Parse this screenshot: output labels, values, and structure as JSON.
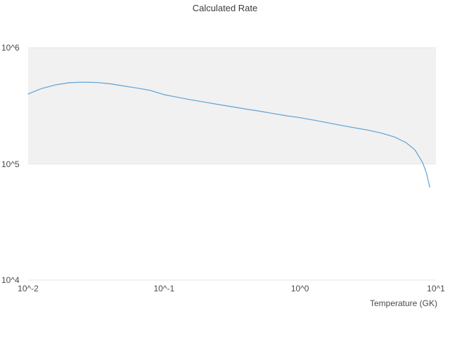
{
  "chart": {
    "title": "Calculated Rate",
    "x_axis_label": "Temperature (GK)",
    "line_color": "#6aa9d8",
    "band_color": "#f1f1f1",
    "gridline_color": "#e6e6e6"
  },
  "chart_data": {
    "type": "line",
    "title": "Calculated Rate",
    "xlabel": "Temperature (GK)",
    "ylabel": "",
    "xscale": "log",
    "yscale": "log",
    "xlim": [
      0.01,
      10
    ],
    "ylim": [
      10000,
      1000000
    ],
    "grid": "horizontal",
    "legend": "none",
    "x_ticks": [
      0.01,
      0.1,
      1,
      10
    ],
    "x_tick_labels": [
      "10^-2",
      "10^-1",
      "10^0",
      "10^1"
    ],
    "y_ticks": [
      10000,
      100000,
      1000000
    ],
    "y_tick_labels": [
      "10^4",
      "10^5",
      "10^6"
    ],
    "band": {
      "y_from": 100000,
      "y_to": 1000000
    },
    "series": [
      {
        "name": "calculated-rate",
        "x": [
          0.01,
          0.0125,
          0.016,
          0.02,
          0.025,
          0.032,
          0.04,
          0.05,
          0.063,
          0.079,
          0.1,
          0.13,
          0.16,
          0.2,
          0.25,
          0.32,
          0.4,
          0.5,
          0.63,
          0.79,
          1.0,
          1.3,
          1.6,
          2.0,
          2.5,
          3.2,
          4.0,
          5.0,
          6.0,
          7.0,
          8.0,
          8.5,
          9.0
        ],
        "y": [
          400000,
          445000,
          480000,
          500000,
          505000,
          502000,
          490000,
          470000,
          450000,
          430000,
          395000,
          372000,
          355000,
          340000,
          325000,
          310000,
          297000,
          285000,
          272000,
          260000,
          250000,
          237000,
          226000,
          215000,
          205000,
          195000,
          184000,
          170000,
          153000,
          132000,
          102000,
          84000,
          63000
        ]
      }
    ]
  }
}
